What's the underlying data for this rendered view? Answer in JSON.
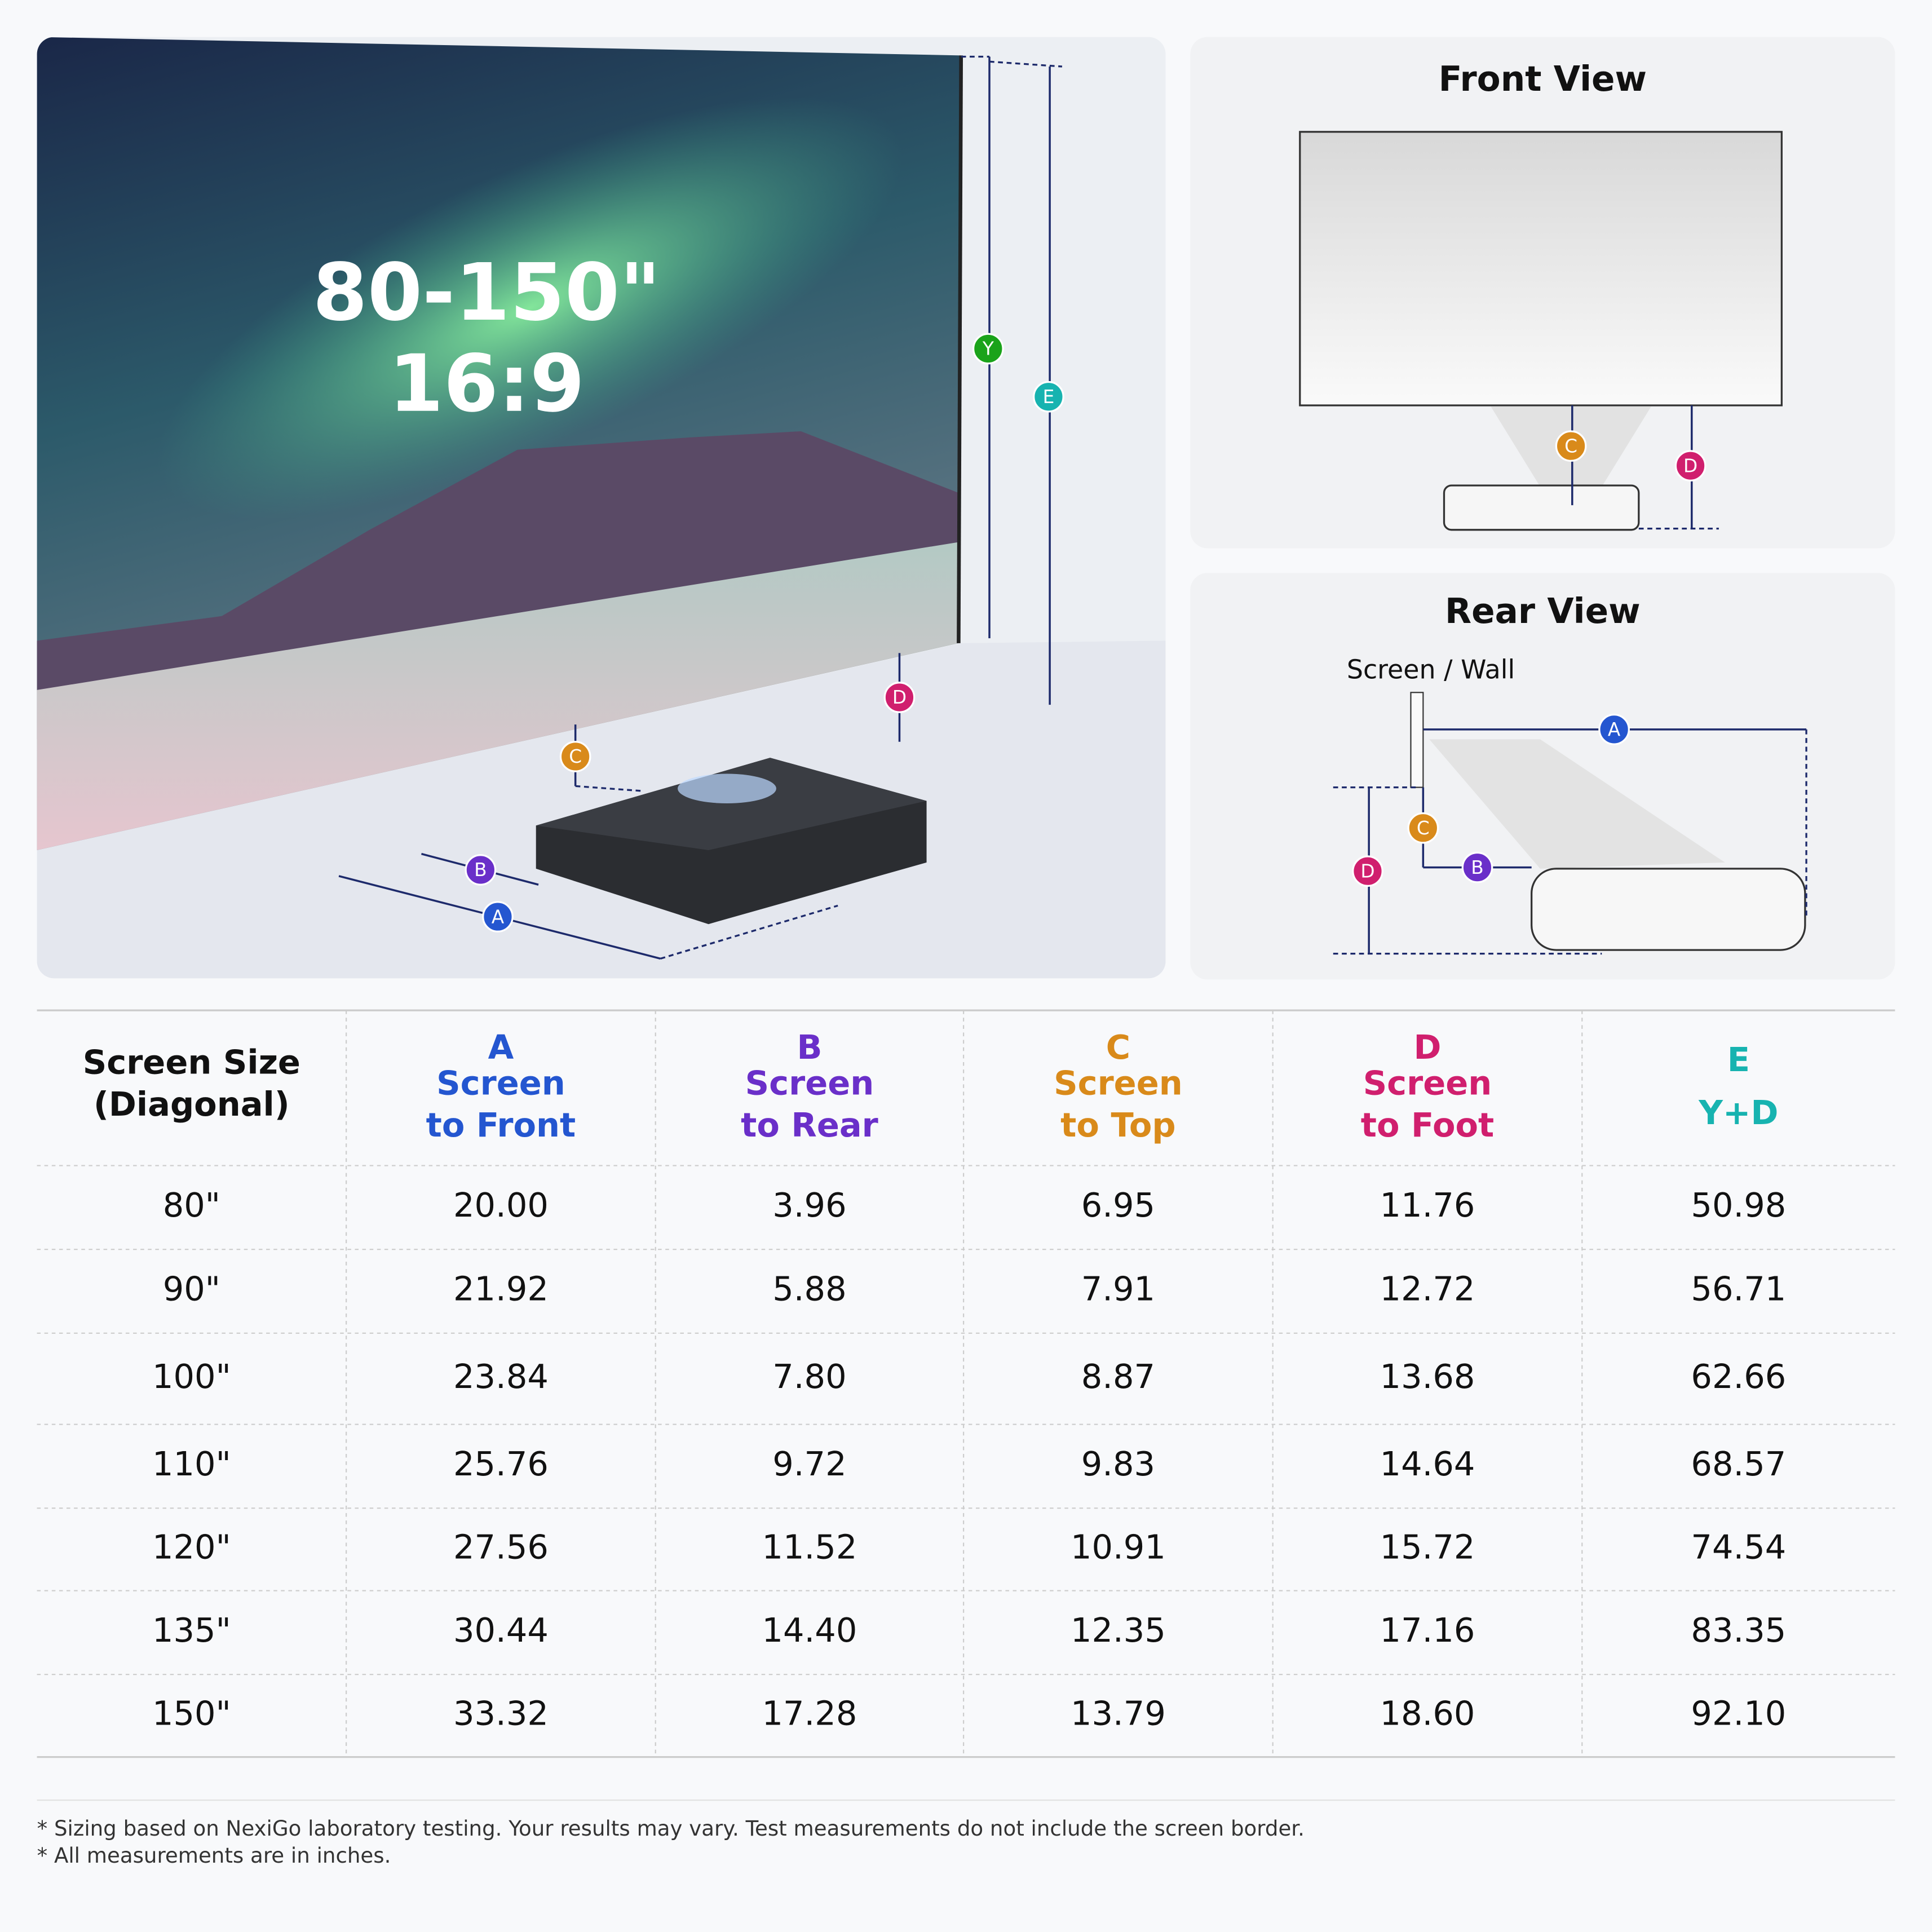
{
  "hero": {
    "size": "80-150\"",
    "ratio": "16:9"
  },
  "photo": {
    "badges": [
      "Y",
      "E",
      "D",
      "C",
      "B",
      "A"
    ]
  },
  "front_view": {
    "title": "Front View",
    "badges": [
      "C",
      "D"
    ]
  },
  "rear_view": {
    "title": "Rear View",
    "wall_label": "Screen / Wall",
    "badges": [
      "A",
      "C",
      "B",
      "D"
    ]
  },
  "table": {
    "header": [
      [
        "Screen Size",
        "(Diagonal)"
      ],
      [
        "A",
        "Screen",
        "to Front"
      ],
      [
        "B",
        "Screen",
        "to Rear"
      ],
      [
        "C",
        "Screen",
        "to Top"
      ],
      [
        "D",
        "Screen",
        "to Foot"
      ],
      [
        "E",
        "Y+D"
      ]
    ],
    "rows": [
      [
        "80\"",
        "20.00",
        "3.96",
        "6.95",
        "11.76",
        "50.98"
      ],
      [
        "90\"",
        "21.92",
        "5.88",
        "7.91",
        "12.72",
        "56.71"
      ],
      [
        "100\"",
        "23.84",
        "7.80",
        "8.87",
        "13.68",
        "62.66"
      ],
      [
        "110\"",
        "25.76",
        "9.72",
        "9.83",
        "14.64",
        "68.57"
      ],
      [
        "120\"",
        "27.56",
        "11.52",
        "10.91",
        "15.72",
        "74.54"
      ],
      [
        "135\"",
        "30.44",
        "14.40",
        "12.35",
        "17.16",
        "83.35"
      ],
      [
        "150\"",
        "33.32",
        "17.28",
        "13.79",
        "18.60",
        "92.10"
      ]
    ]
  },
  "footnotes": [
    "* Sizing based on NexiGo laboratory testing. Your results may vary. Test measurements do not include the screen border.",
    "* All measurements are in inches."
  ]
}
